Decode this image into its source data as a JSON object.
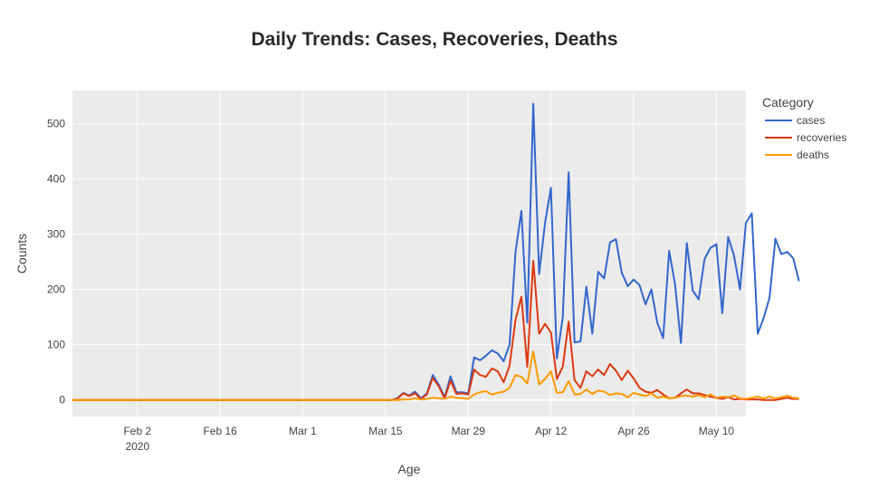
{
  "chart_data": {
    "type": "line",
    "title": "Daily Trends: Cases, Recoveries, Deaths",
    "xlabel": "Age",
    "ylabel": "Counts",
    "x_start": "2020-01-22",
    "x_end": "2020-05-14",
    "xlim": [
      "2020-01-22",
      "2020-05-15"
    ],
    "ylim": [
      -30,
      560
    ],
    "y_ticks": [
      0,
      100,
      200,
      300,
      400,
      500
    ],
    "x_ticks": [
      {
        "date": "2020-02-02",
        "label": "Feb 2",
        "sublabel": "2020"
      },
      {
        "date": "2020-02-16",
        "label": "Feb 16",
        "sublabel": ""
      },
      {
        "date": "2020-03-01",
        "label": "Mar 1",
        "sublabel": ""
      },
      {
        "date": "2020-03-15",
        "label": "Mar 15",
        "sublabel": ""
      },
      {
        "date": "2020-03-29",
        "label": "Mar 29",
        "sublabel": ""
      },
      {
        "date": "2020-04-12",
        "label": "Apr 12",
        "sublabel": ""
      },
      {
        "date": "2020-04-26",
        "label": "Apr 26",
        "sublabel": ""
      },
      {
        "date": "2020-05-10",
        "label": "May 10",
        "sublabel": ""
      }
    ],
    "grid": true,
    "legend": {
      "title": "Category",
      "position": "right"
    },
    "series": [
      {
        "name": "cases",
        "color": "#3366cc",
        "values": [
          0,
          0,
          0,
          0,
          0,
          0,
          0,
          0,
          0,
          0,
          0,
          0,
          0,
          0,
          0,
          0,
          0,
          0,
          0,
          0,
          0,
          0,
          0,
          0,
          0,
          0,
          0,
          0,
          0,
          0,
          0,
          0,
          0,
          0,
          0,
          0,
          0,
          0,
          0,
          0,
          0,
          0,
          0,
          0,
          0,
          0,
          0,
          0,
          0,
          0,
          0,
          0,
          0,
          0,
          0,
          3,
          13,
          8,
          15,
          3,
          12,
          45,
          28,
          5,
          43,
          14,
          14,
          12,
          77,
          72,
          80,
          90,
          84,
          70,
          100,
          268,
          342,
          140,
          536,
          228,
          320,
          384,
          75,
          150,
          412,
          104,
          106,
          205,
          120,
          232,
          220,
          285,
          291,
          230,
          206,
          218,
          208,
          173,
          200,
          140,
          112,
          270,
          210,
          103,
          284,
          198,
          182,
          255,
          275,
          282,
          157,
          295,
          261,
          200,
          320,
          338,
          120,
          148,
          185,
          292,
          264,
          268,
          257,
          215
        ]
      },
      {
        "name": "recoveries",
        "color": "#dc3912",
        "values": [
          0,
          0,
          0,
          0,
          0,
          0,
          0,
          0,
          0,
          0,
          0,
          0,
          0,
          0,
          0,
          0,
          0,
          0,
          0,
          0,
          0,
          0,
          0,
          0,
          0,
          0,
          0,
          0,
          0,
          0,
          0,
          0,
          0,
          0,
          0,
          0,
          0,
          0,
          0,
          0,
          0,
          0,
          0,
          0,
          0,
          0,
          0,
          0,
          0,
          0,
          0,
          0,
          0,
          0,
          0,
          2,
          12,
          7,
          12,
          2,
          10,
          40,
          25,
          3,
          35,
          11,
          12,
          10,
          55,
          45,
          42,
          57,
          52,
          32,
          62,
          145,
          187,
          60,
          252,
          120,
          138,
          122,
          38,
          60,
          142,
          36,
          22,
          52,
          43,
          55,
          45,
          65,
          53,
          36,
          53,
          39,
          22,
          15,
          13,
          18,
          10,
          3,
          4,
          12,
          19,
          12,
          12,
          9,
          6,
          4,
          2,
          5,
          1,
          2,
          1,
          1,
          1,
          0,
          0,
          0,
          2,
          4,
          2,
          2
        ]
      },
      {
        "name": "deaths",
        "color": "#ff9900",
        "values": [
          0,
          0,
          0,
          0,
          0,
          0,
          0,
          0,
          0,
          0,
          0,
          0,
          0,
          0,
          0,
          0,
          0,
          0,
          0,
          0,
          0,
          0,
          0,
          0,
          0,
          0,
          0,
          0,
          0,
          0,
          0,
          0,
          0,
          0,
          0,
          0,
          0,
          0,
          0,
          0,
          0,
          0,
          0,
          0,
          0,
          0,
          0,
          0,
          0,
          0,
          0,
          0,
          0,
          0,
          0,
          0,
          1,
          1,
          3,
          1,
          2,
          4,
          3,
          2,
          6,
          4,
          3,
          2,
          10,
          14,
          16,
          10,
          13,
          15,
          22,
          45,
          42,
          30,
          88,
          28,
          38,
          52,
          13,
          14,
          34,
          10,
          11,
          19,
          11,
          17,
          15,
          9,
          12,
          11,
          5,
          13,
          10,
          7,
          12,
          4,
          6,
          3,
          4,
          7,
          8,
          6,
          9,
          5,
          10,
          4,
          6,
          5,
          8,
          3,
          2,
          4,
          6,
          3,
          6,
          3,
          5,
          8,
          4,
          3
        ]
      }
    ]
  }
}
